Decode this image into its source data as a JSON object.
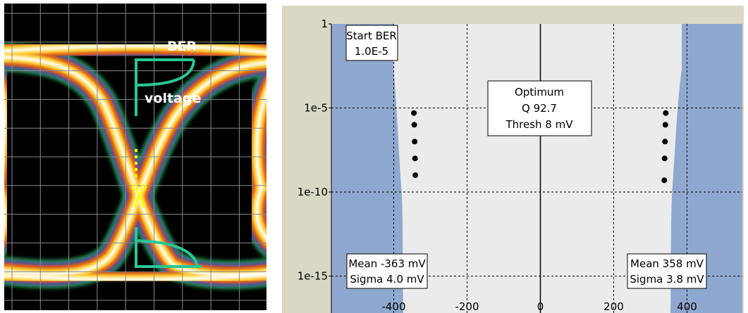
{
  "eye_diagram": {
    "annotations": {
      "ber_label": "BER",
      "voltage_label": "voltage",
      "scissors_glyph": "✂"
    },
    "colors": {
      "background": "#000000",
      "grid": "#888888",
      "trace_core": "#ffffff",
      "trace_hot": "#ffd23a",
      "trace_mid": "#e06010",
      "trace_edge": "#5a3cb4",
      "trace_outer": "#1aa34a",
      "annotation_line": "#28c896",
      "label_text": "#ffffff",
      "cut_marker": "#ffff00"
    }
  },
  "chart_data": {
    "type": "scatter",
    "title": "",
    "xlabel": "",
    "ylabel": "",
    "log_y": true,
    "xlim": [
      -500,
      500
    ],
    "ylim": [
      1e-17,
      1
    ],
    "x_ticks": [
      {
        "value": -400,
        "label": "-400"
      },
      {
        "value": -200,
        "label": "-200"
      },
      {
        "value": 0,
        "label": "0"
      },
      {
        "value": 200,
        "label": "200"
      },
      {
        "value": 400,
        "label": "400"
      }
    ],
    "y_ticks": [
      {
        "value": 1,
        "label": "1"
      },
      {
        "value": 1e-05,
        "label": "1e-5"
      },
      {
        "value": 1e-10,
        "label": "1e-10"
      },
      {
        "value": 1e-15,
        "label": "1e-15"
      }
    ],
    "grid": true,
    "series": [
      {
        "x": [
          -345,
          -344,
          -343,
          -342,
          -341
        ],
        "y": [
          5e-06,
          1e-06,
          1e-07,
          1e-08,
          1e-09
        ],
        "color": "#000000"
      },
      {
        "x": [
          342,
          341,
          340,
          339,
          338
        ],
        "y": [
          5e-06,
          1e-06,
          1e-07,
          1e-08,
          5e-10
        ],
        "color": "#000000"
      }
    ],
    "shaded_regions": {
      "left": {
        "mean_mv": -363,
        "sigma_mv": 4.0
      },
      "right": {
        "mean_mv": 358,
        "sigma_mv": 3.8
      }
    },
    "annotations": {
      "start_ber": {
        "line1": "Start BER",
        "line2": "1.0E-5"
      },
      "optimum": {
        "line1": "Optimum",
        "line2": "Q 92.7",
        "line3": "Thresh 8 mV"
      },
      "left_stats": {
        "line1": "Mean -363 mV",
        "line2": "Sigma 4.0 mV"
      },
      "right_stats": {
        "line1": "Mean 358 mV",
        "line2": "Sigma 3.8 mV"
      }
    },
    "colors": {
      "frame_bg": "#d8d8c4",
      "plot_bg": "#ebebeb",
      "shade": "#8fa8cf",
      "grid": "#000000",
      "marker": "#000000",
      "label_box_bg": "#ffffff"
    }
  }
}
